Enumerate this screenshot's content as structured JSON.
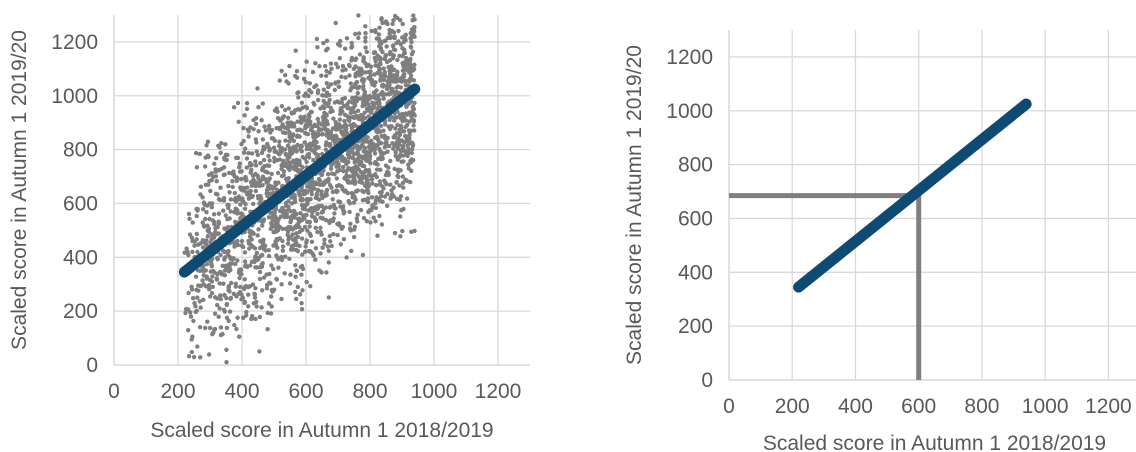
{
  "chart_data": [
    {
      "type": "scatter",
      "xlabel": "Scaled score in Autumn 1 2018/2019",
      "ylabel": "Scaled score in Autumn 1 2019/20",
      "xlim": [
        0,
        1300
      ],
      "ylim": [
        0,
        1300
      ],
      "xticks": [
        0,
        200,
        400,
        600,
        800,
        1000,
        1200
      ],
      "yticks": [
        0,
        200,
        400,
        600,
        800,
        1000,
        1200
      ],
      "grid": true,
      "legend": "none",
      "colors": {
        "points": "#7f7f7f",
        "trend": "#0e4a72",
        "grid": "#d9d9d9"
      },
      "scatter": {
        "description_n": 2500,
        "x_range": [
          220,
          940
        ],
        "y_range": [
          0,
          1300
        ],
        "seed": 20192020
      },
      "trend_line": {
        "x": [
          220,
          940
        ],
        "y": [
          345,
          1025
        ]
      }
    },
    {
      "type": "line",
      "xlabel": "Scaled score in Autumn 1 2018/2019",
      "ylabel": "Scaled score in Autumn 1 2019/20",
      "xlim": [
        0,
        1300
      ],
      "ylim": [
        0,
        1300
      ],
      "xticks": [
        0,
        200,
        400,
        600,
        800,
        1000,
        1200
      ],
      "yticks": [
        0,
        200,
        400,
        600,
        800,
        1000,
        1200
      ],
      "grid": true,
      "legend": "none",
      "colors": {
        "trend": "#0e4a72",
        "guide": "#7f7f7f",
        "grid": "#d9d9d9"
      },
      "trend_line": {
        "x": [
          220,
          940
        ],
        "y": [
          345,
          1025
        ]
      },
      "guide_point": {
        "x": 600,
        "y": 685
      }
    }
  ]
}
